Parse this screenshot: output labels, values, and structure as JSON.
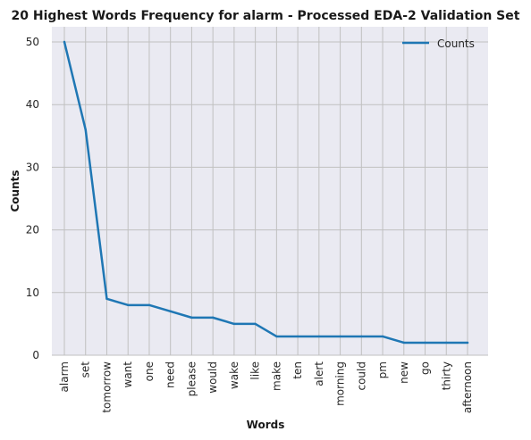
{
  "chart_data": {
    "type": "line",
    "title": "20 Highest Words Frequency for alarm - Processed EDA-2 Validation Set",
    "xlabel": "Words",
    "ylabel": "Counts",
    "categories": [
      "alarm",
      "set",
      "tomorrow",
      "want",
      "one",
      "need",
      "please",
      "would",
      "wake",
      "like",
      "make",
      "ten",
      "alert",
      "morning",
      "could",
      "pm",
      "new",
      "go",
      "thirty",
      "afternoon"
    ],
    "series": [
      {
        "name": "Counts",
        "values": [
          50,
          36,
          9,
          8,
          8,
          7,
          6,
          6,
          5,
          5,
          3,
          3,
          3,
          3,
          3,
          3,
          2,
          2,
          2,
          2
        ]
      }
    ],
    "yticks": [
      0,
      10,
      20,
      30,
      40,
      50
    ],
    "ylim": [
      0,
      50
    ],
    "grid": true,
    "legend": "top-right",
    "colors": {
      "line": "#1f77b4",
      "plot_bg": "#eaeaf2",
      "grid": "#c0c0c0"
    }
  }
}
